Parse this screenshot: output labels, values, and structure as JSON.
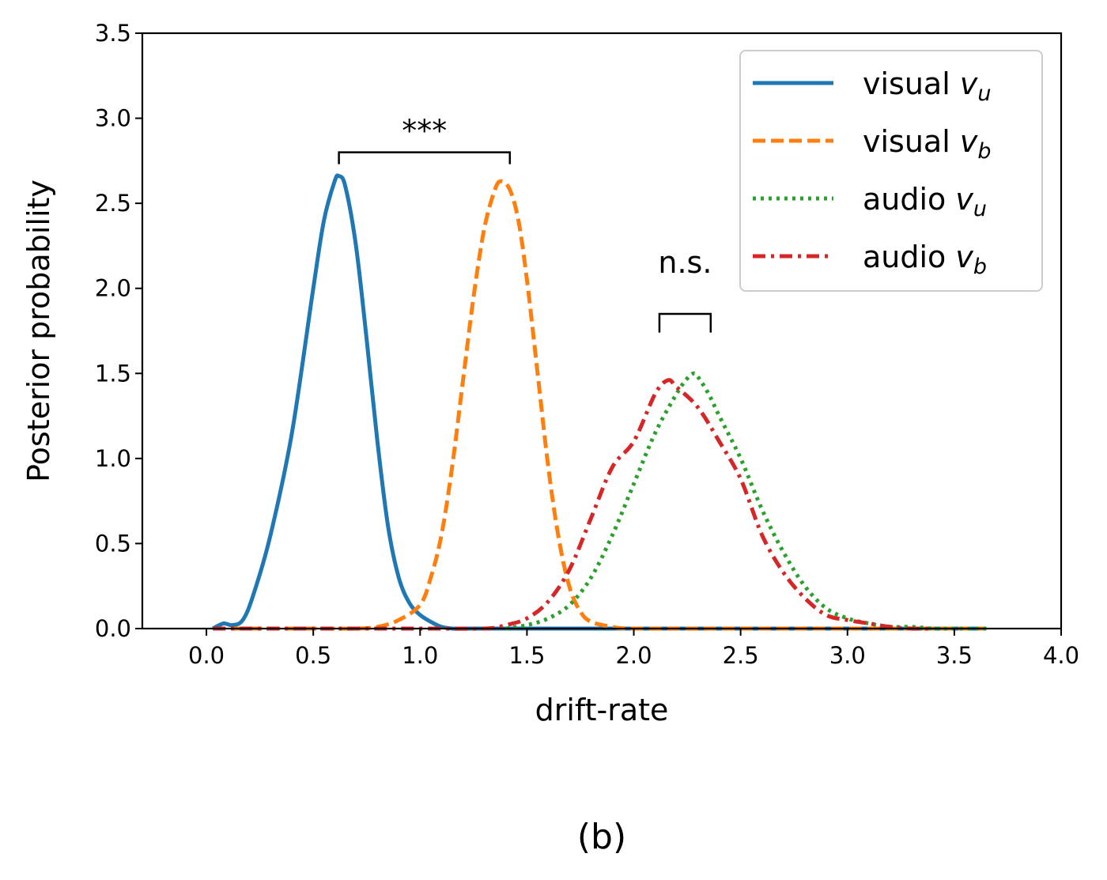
{
  "chart_data": {
    "type": "line",
    "xlabel": "drift-rate",
    "ylabel": "Posterior probability",
    "xlim": [
      -0.3,
      4.0
    ],
    "ylim": [
      0.0,
      3.5
    ],
    "xticks": [
      "0.0",
      "0.5",
      "1.0",
      "1.5",
      "2.0",
      "2.5",
      "3.0",
      "3.5",
      "4.0"
    ],
    "yticks": [
      "0.0",
      "0.5",
      "1.0",
      "1.5",
      "2.0",
      "2.5",
      "3.0",
      "3.5"
    ],
    "grid": false,
    "legend_position": "top-right",
    "caption": "(b)",
    "series": [
      {
        "name": "visual v_u",
        "legend_base": "visual ",
        "legend_sym": "v",
        "legend_sub": "u",
        "color": "#1f77b4",
        "style": "solid",
        "x": [
          0.03,
          0.08,
          0.12,
          0.17,
          0.22,
          0.3,
          0.4,
          0.5,
          0.55,
          0.6,
          0.62,
          0.65,
          0.7,
          0.75,
          0.8,
          0.85,
          0.9,
          0.95,
          1.0,
          1.05,
          1.1,
          1.15,
          1.2,
          1.3,
          1.5,
          2.0,
          2.5,
          3.0,
          3.5,
          3.65
        ],
        "y": [
          0.0,
          0.03,
          0.02,
          0.05,
          0.2,
          0.55,
          1.15,
          2.0,
          2.4,
          2.63,
          2.66,
          2.6,
          2.25,
          1.7,
          1.1,
          0.6,
          0.3,
          0.15,
          0.08,
          0.04,
          0.01,
          0.0,
          0.0,
          0.0,
          0.0,
          0.0,
          0.0,
          0.0,
          0.0,
          0.0
        ]
      },
      {
        "name": "visual v_b",
        "legend_base": "visual ",
        "legend_sym": "v",
        "legend_sub": "b",
        "color": "#ff7f0e",
        "style": "dashed",
        "x": [
          0.03,
          0.5,
          0.7,
          0.8,
          0.9,
          1.0,
          1.05,
          1.1,
          1.15,
          1.2,
          1.25,
          1.3,
          1.35,
          1.38,
          1.42,
          1.46,
          1.5,
          1.55,
          1.6,
          1.65,
          1.7,
          1.75,
          1.8,
          1.9,
          2.0,
          2.5,
          3.0,
          3.65
        ],
        "y": [
          0.0,
          0.0,
          0.0,
          0.01,
          0.05,
          0.14,
          0.3,
          0.55,
          0.95,
          1.45,
          1.95,
          2.35,
          2.58,
          2.63,
          2.58,
          2.4,
          2.05,
          1.5,
          0.95,
          0.52,
          0.24,
          0.1,
          0.04,
          0.01,
          0.0,
          0.0,
          0.0,
          0.0
        ]
      },
      {
        "name": "audio v_u",
        "legend_base": "audio ",
        "legend_sym": "v",
        "legend_sub": "u",
        "color": "#2ca02c",
        "style": "dotted",
        "x": [
          1.4,
          1.5,
          1.6,
          1.7,
          1.8,
          1.9,
          2.0,
          2.1,
          2.2,
          2.25,
          2.28,
          2.3,
          2.35,
          2.4,
          2.5,
          2.6,
          2.7,
          2.8,
          2.9,
          3.0,
          3.1,
          3.2,
          3.3,
          3.4,
          3.5,
          3.65
        ],
        "y": [
          0.0,
          0.02,
          0.06,
          0.14,
          0.3,
          0.55,
          0.85,
          1.15,
          1.38,
          1.47,
          1.5,
          1.48,
          1.38,
          1.25,
          1.0,
          0.7,
          0.45,
          0.25,
          0.12,
          0.06,
          0.03,
          0.01,
          0.01,
          0.0,
          0.0,
          0.0
        ]
      },
      {
        "name": "audio v_b",
        "legend_base": "audio ",
        "legend_sym": "v",
        "legend_sub": "b",
        "color": "#d62728",
        "style": "dashdot",
        "x": [
          0.03,
          1.0,
          1.3,
          1.4,
          1.5,
          1.6,
          1.7,
          1.8,
          1.9,
          2.0,
          2.1,
          2.16,
          2.2,
          2.3,
          2.4,
          2.5,
          2.6,
          2.7,
          2.8,
          2.9,
          3.0,
          3.1,
          3.2,
          3.3,
          3.4
        ],
        "y": [
          0.0,
          0.0,
          0.0,
          0.02,
          0.06,
          0.16,
          0.35,
          0.65,
          0.95,
          1.1,
          1.38,
          1.46,
          1.42,
          1.3,
          1.1,
          0.88,
          0.55,
          0.33,
          0.18,
          0.08,
          0.05,
          0.03,
          0.01,
          0.0,
          0.0
        ]
      }
    ],
    "annotations": [
      {
        "label": "***",
        "x1": 0.62,
        "x2": 1.42,
        "y": 2.8,
        "tick_len": 0.07
      },
      {
        "label": "n.s.",
        "x1": 2.12,
        "x2": 2.36,
        "y": 1.85,
        "tick_len": 0.11
      }
    ]
  }
}
